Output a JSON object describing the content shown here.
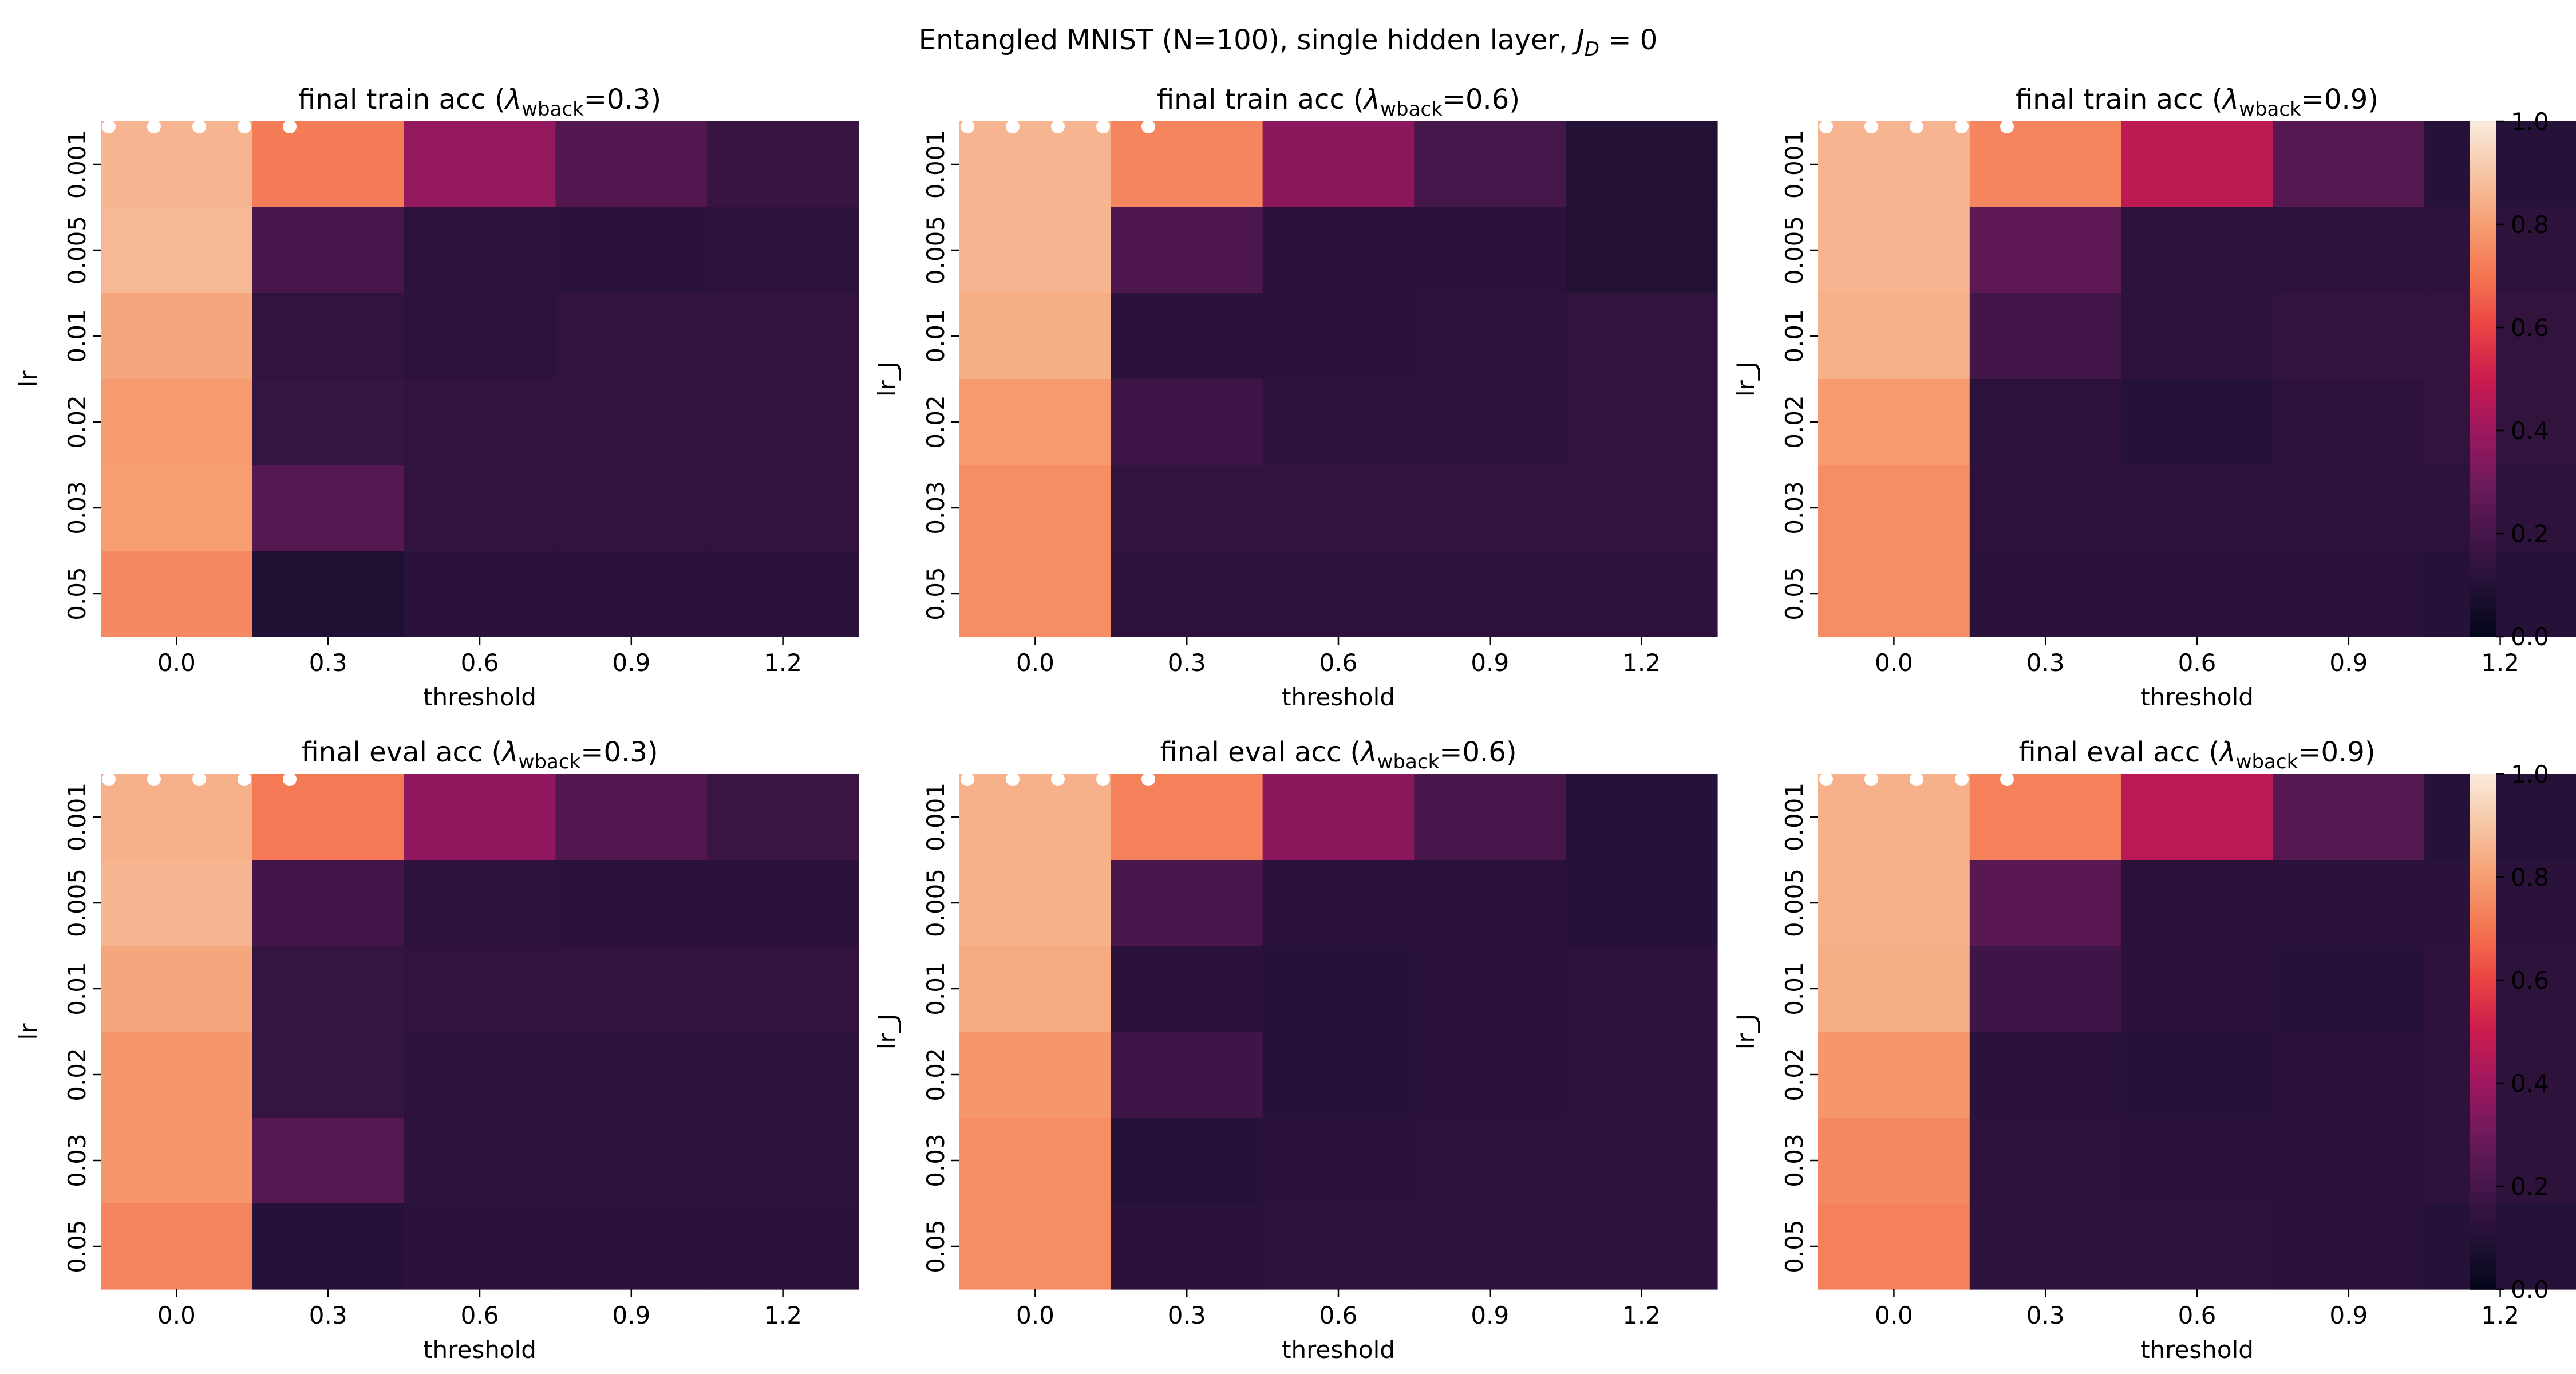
{
  "figure": {
    "suptitle": "Entangled MNIST (N=100), single hidden layer, J_D = 0"
  },
  "colorbar": {
    "ticks": [
      "0.0",
      "0.2",
      "0.4",
      "0.6",
      "0.8",
      "1.0"
    ],
    "colormap": "rocket"
  },
  "chart_data": [
    {
      "type": "heatmap",
      "title": "final train acc (λ_wback=0.3)",
      "xlabel": "threshold",
      "ylabel": "lr",
      "x_categories": [
        "0.0",
        "0.3",
        "0.6",
        "0.9",
        "1.2"
      ],
      "y_categories": [
        "0.001",
        "0.005",
        "0.01",
        "0.02",
        "0.03",
        "0.05"
      ],
      "vlim": [
        0,
        1
      ],
      "values": [
        [
          0.86,
          0.72,
          0.38,
          0.23,
          0.16
        ],
        [
          0.87,
          0.21,
          0.13,
          0.12,
          0.13
        ],
        [
          0.82,
          0.14,
          0.13,
          0.14,
          0.14
        ],
        [
          0.79,
          0.15,
          0.14,
          0.14,
          0.14
        ],
        [
          0.8,
          0.24,
          0.14,
          0.14,
          0.14
        ],
        [
          0.75,
          0.09,
          0.12,
          0.12,
          0.12
        ]
      ]
    },
    {
      "type": "heatmap",
      "title": "final train acc (λ_wback=0.6)",
      "xlabel": "threshold",
      "ylabel": "lr_J",
      "x_categories": [
        "0.0",
        "0.3",
        "0.6",
        "0.9",
        "1.2"
      ],
      "y_categories": [
        "0.001",
        "0.005",
        "0.01",
        "0.02",
        "0.03",
        "0.05"
      ],
      "vlim": [
        0,
        1
      ],
      "values": [
        [
          0.86,
          0.74,
          0.36,
          0.2,
          0.1
        ],
        [
          0.86,
          0.22,
          0.12,
          0.12,
          0.1
        ],
        [
          0.84,
          0.12,
          0.12,
          0.13,
          0.14
        ],
        [
          0.79,
          0.18,
          0.13,
          0.13,
          0.14
        ],
        [
          0.76,
          0.14,
          0.14,
          0.14,
          0.14
        ],
        [
          0.76,
          0.13,
          0.13,
          0.13,
          0.13
        ]
      ]
    },
    {
      "type": "heatmap",
      "title": "final train acc (λ_wback=0.9)",
      "xlabel": "threshold",
      "ylabel": "lr_J",
      "x_categories": [
        "0.0",
        "0.3",
        "0.6",
        "0.9",
        "1.2"
      ],
      "y_categories": [
        "0.001",
        "0.005",
        "0.01",
        "0.02",
        "0.03",
        "0.05"
      ],
      "vlim": [
        0,
        1
      ],
      "values": [
        [
          0.86,
          0.74,
          0.47,
          0.24,
          0.11
        ],
        [
          0.86,
          0.26,
          0.13,
          0.13,
          0.13
        ],
        [
          0.85,
          0.19,
          0.13,
          0.14,
          0.14
        ],
        [
          0.79,
          0.13,
          0.11,
          0.13,
          0.14
        ],
        [
          0.76,
          0.13,
          0.13,
          0.13,
          0.13
        ],
        [
          0.76,
          0.12,
          0.12,
          0.12,
          0.11
        ]
      ]
    },
    {
      "type": "heatmap",
      "title": "final eval acc (λ_wback=0.3)",
      "xlabel": "threshold",
      "ylabel": "lr",
      "x_categories": [
        "0.0",
        "0.3",
        "0.6",
        "0.9",
        "1.2"
      ],
      "y_categories": [
        "0.001",
        "0.005",
        "0.01",
        "0.02",
        "0.03",
        "0.05"
      ],
      "vlim": [
        0,
        1
      ],
      "values": [
        [
          0.85,
          0.71,
          0.37,
          0.23,
          0.17
        ],
        [
          0.86,
          0.19,
          0.13,
          0.12,
          0.12
        ],
        [
          0.82,
          0.15,
          0.14,
          0.14,
          0.14
        ],
        [
          0.78,
          0.15,
          0.13,
          0.13,
          0.13
        ],
        [
          0.78,
          0.24,
          0.13,
          0.13,
          0.13
        ],
        [
          0.74,
          0.11,
          0.12,
          0.12,
          0.12
        ]
      ]
    },
    {
      "type": "heatmap",
      "title": "final eval acc (λ_wback=0.6)",
      "xlabel": "threshold",
      "ylabel": "lr_J",
      "x_categories": [
        "0.0",
        "0.3",
        "0.6",
        "0.9",
        "1.2"
      ],
      "y_categories": [
        "0.001",
        "0.005",
        "0.01",
        "0.02",
        "0.03",
        "0.05"
      ],
      "vlim": [
        0,
        1
      ],
      "values": [
        [
          0.85,
          0.73,
          0.36,
          0.21,
          0.11
        ],
        [
          0.85,
          0.21,
          0.12,
          0.12,
          0.11
        ],
        [
          0.83,
          0.12,
          0.11,
          0.12,
          0.13
        ],
        [
          0.78,
          0.18,
          0.11,
          0.12,
          0.13
        ],
        [
          0.76,
          0.11,
          0.12,
          0.13,
          0.13
        ],
        [
          0.76,
          0.12,
          0.13,
          0.13,
          0.13
        ]
      ]
    },
    {
      "type": "heatmap",
      "title": "final eval acc (λ_wback=0.9)",
      "xlabel": "threshold",
      "ylabel": "lr_J",
      "x_categories": [
        "0.0",
        "0.3",
        "0.6",
        "0.9",
        "1.2"
      ],
      "y_categories": [
        "0.001",
        "0.005",
        "0.01",
        "0.02",
        "0.03",
        "0.05"
      ],
      "vlim": [
        0,
        1
      ],
      "values": [
        [
          0.85,
          0.73,
          0.46,
          0.24,
          0.11
        ],
        [
          0.85,
          0.25,
          0.12,
          0.12,
          0.12
        ],
        [
          0.84,
          0.18,
          0.12,
          0.11,
          0.13
        ],
        [
          0.78,
          0.12,
          0.11,
          0.12,
          0.13
        ],
        [
          0.75,
          0.13,
          0.12,
          0.12,
          0.13
        ],
        [
          0.73,
          0.13,
          0.13,
          0.12,
          0.11
        ]
      ]
    }
  ]
}
